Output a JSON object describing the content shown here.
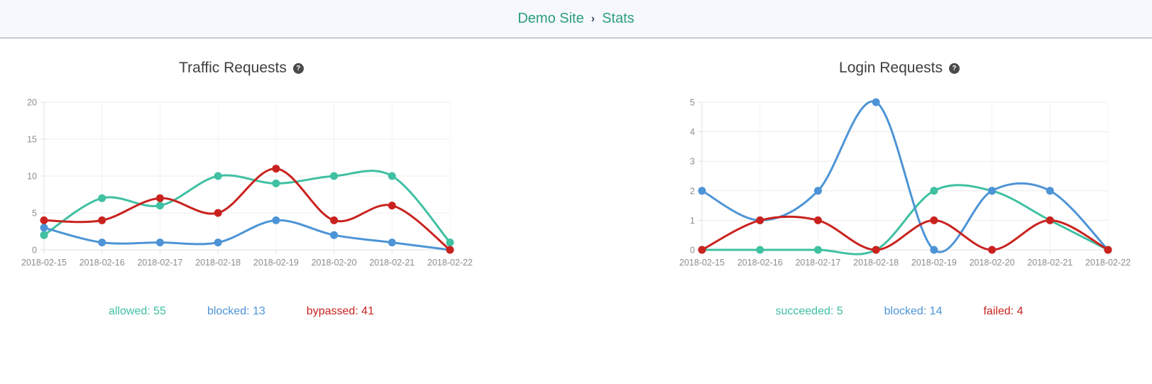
{
  "header": {
    "breadcrumb": {
      "site": "Demo Site",
      "separator": "›",
      "page": "Stats"
    }
  },
  "ui": {
    "help_glyph": "?"
  },
  "colors": {
    "breadcrumb_teal": "#2b9d80",
    "separator_dark": "#33475b",
    "grid_line": "#ececec",
    "grid_line_vertical": "#f4f4f4",
    "axis_tick": "#e0e0e0",
    "axis_label": "#8d8d8d"
  },
  "chart_data": [
    {
      "type": "line",
      "title": "Traffic Requests",
      "x": [
        "2018-02-15",
        "2018-02-16",
        "2018-02-17",
        "2018-02-18",
        "2018-02-19",
        "2018-02-20",
        "2018-02-21",
        "2018-02-22"
      ],
      "series": [
        {
          "name": "allowed",
          "total": 55,
          "color": "#3fc0a2",
          "values": [
            2,
            7,
            6,
            10,
            9,
            10,
            10,
            1
          ]
        },
        {
          "name": "blocked",
          "total": 13,
          "color": "#4d94d6",
          "values": [
            3,
            1,
            1,
            1,
            4,
            2,
            1,
            0
          ]
        },
        {
          "name": "bypassed",
          "total": 41,
          "color": "#c9221e",
          "values": [
            4,
            4,
            7,
            5,
            11,
            4,
            6,
            0
          ]
        }
      ],
      "ylim": [
        0,
        20
      ],
      "ytick_step": 5,
      "grid": true,
      "legend_position": "bottom"
    },
    {
      "type": "line",
      "title": "Login Requests",
      "x": [
        "2018-02-15",
        "2018-02-16",
        "2018-02-17",
        "2018-02-18",
        "2018-02-19",
        "2018-02-20",
        "2018-02-21",
        "2018-02-22"
      ],
      "series": [
        {
          "name": "succeeded",
          "total": 5,
          "color": "#3fc0a2",
          "values": [
            0,
            0,
            0,
            0,
            2,
            2,
            1,
            0
          ]
        },
        {
          "name": "blocked",
          "total": 14,
          "color": "#4d94d6",
          "values": [
            2,
            1,
            2,
            5,
            0,
            2,
            2,
            0
          ]
        },
        {
          "name": "failed",
          "total": 4,
          "color": "#c9221e",
          "values": [
            0,
            1,
            1,
            0,
            1,
            0,
            1,
            0
          ]
        }
      ],
      "ylim": [
        0,
        5
      ],
      "ytick_step": 1,
      "grid": true,
      "legend_position": "bottom"
    }
  ]
}
